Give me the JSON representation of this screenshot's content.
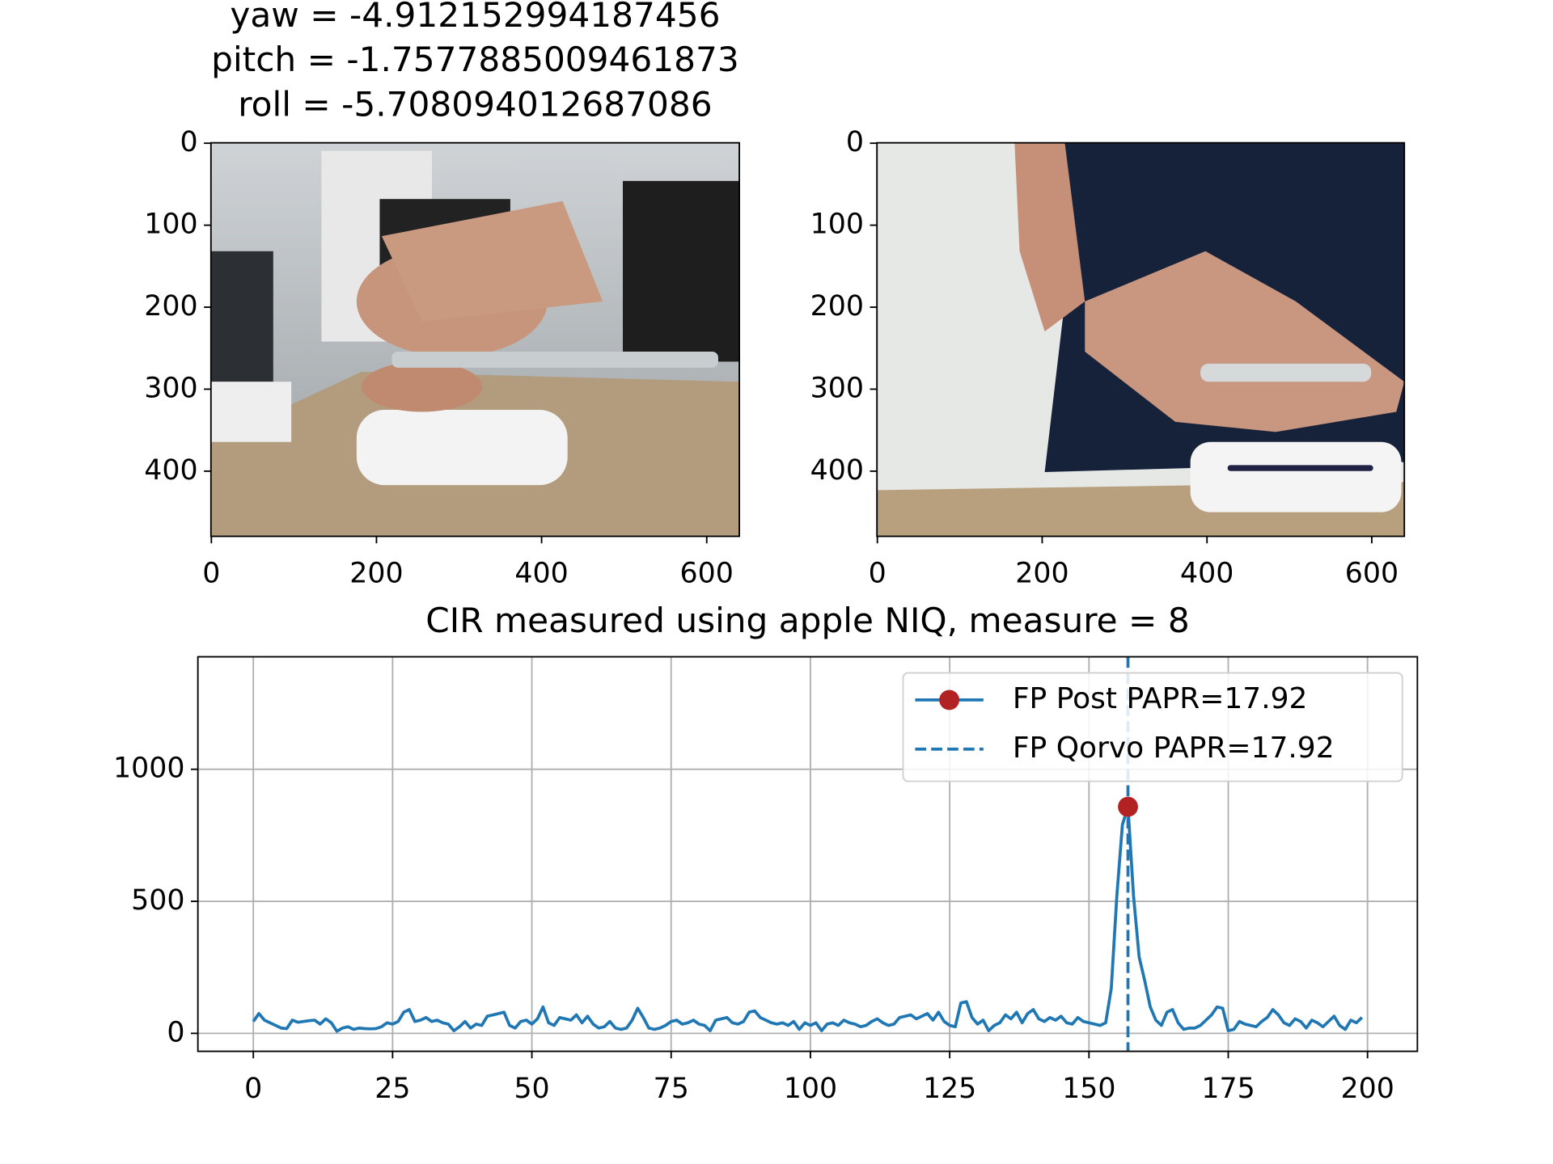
{
  "chart_data": [
    {
      "type": "image",
      "title_lines": [
        "yaw = -4.912152994187456",
        "pitch = -1.7577885009461873",
        "roll = -5.708094012687086"
      ],
      "xlim": [
        -0.5,
        639.5
      ],
      "ylim": [
        479.5,
        -0.5
      ],
      "xticks": [
        0,
        200,
        400,
        600
      ],
      "yticks": [
        0,
        100,
        200,
        300,
        400
      ]
    },
    {
      "type": "image",
      "xlim": [
        -0.5,
        639.5
      ],
      "ylim": [
        479.5,
        -0.5
      ],
      "xticks": [
        0,
        200,
        400,
        600
      ],
      "yticks": [
        0,
        100,
        200,
        300,
        400
      ]
    },
    {
      "type": "line",
      "title": "CIR measured using apple NIQ, measure = 8",
      "xlim": [
        -9.95,
        208.95
      ],
      "ylim": [
        -68,
        1426
      ],
      "xticks": [
        0,
        25,
        50,
        75,
        100,
        125,
        150,
        175,
        200
      ],
      "yticks": [
        0,
        500,
        1000
      ],
      "grid": true,
      "legend": "upper right",
      "series": [
        {
          "name": "FP Post PAPR=17.92",
          "color": "#1f77b4",
          "marker_color": "#b22222",
          "marker_x": 157,
          "values": [
            45,
            75,
            50,
            40,
            30,
            20,
            18,
            50,
            42,
            45,
            48,
            50,
            35,
            55,
            40,
            8,
            20,
            25,
            15,
            20,
            18,
            17,
            18,
            25,
            40,
            35,
            45,
            80,
            90,
            45,
            50,
            60,
            45,
            50,
            40,
            35,
            10,
            25,
            45,
            20,
            35,
            30,
            65,
            70,
            75,
            80,
            30,
            20,
            45,
            50,
            35,
            55,
            100,
            40,
            30,
            60,
            55,
            50,
            70,
            40,
            65,
            35,
            20,
            25,
            45,
            20,
            15,
            20,
            50,
            95,
            60,
            20,
            15,
            20,
            30,
            45,
            50,
            35,
            40,
            50,
            35,
            30,
            10,
            50,
            55,
            60,
            40,
            35,
            45,
            80,
            85,
            60,
            50,
            40,
            35,
            40,
            30,
            45,
            15,
            40,
            30,
            40,
            10,
            35,
            40,
            30,
            50,
            40,
            35,
            25,
            30,
            45,
            55,
            40,
            30,
            35,
            60,
            65,
            70,
            55,
            65,
            75,
            50,
            80,
            45,
            30,
            25,
            115,
            120,
            60,
            35,
            50,
            10,
            30,
            40,
            70,
            55,
            80,
            40,
            75,
            90,
            55,
            45,
            60,
            50,
            65,
            40,
            35,
            60,
            45,
            40,
            35,
            30,
            40,
            170,
            520,
            790,
            858,
            520,
            290,
            200,
            100,
            50,
            30,
            80,
            90,
            40,
            15,
            20,
            20,
            30,
            50,
            70,
            100,
            95,
            10,
            15,
            45,
            35,
            30,
            25,
            45,
            60,
            90,
            70,
            40,
            30,
            55,
            45,
            20,
            50,
            40,
            25,
            45,
            65,
            30,
            15,
            50,
            40,
            60
          ]
        },
        {
          "name": "FP Qorvo PAPR=17.92",
          "color": "#1f77b4",
          "style": "dashed",
          "vline_x": 157
        }
      ]
    }
  ]
}
